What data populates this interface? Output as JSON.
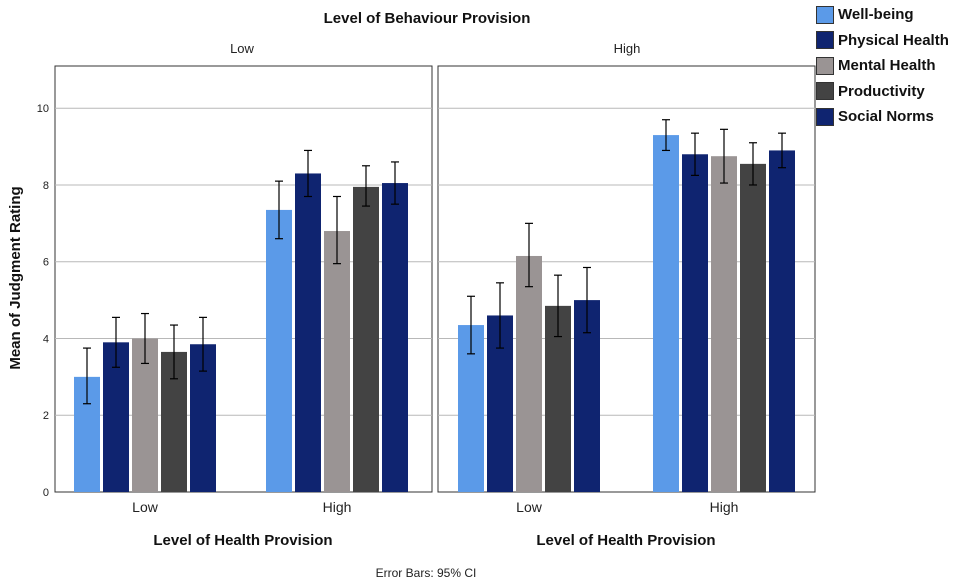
{
  "chart_data": {
    "type": "bar",
    "title": "Level of Behaviour Provision",
    "ylabel": "Mean of Judgment Rating",
    "xlabel": "Level of Health Provision",
    "footnote": "Error Bars: 95% CI",
    "ylim": [
      0,
      11.1
    ],
    "yticks": [
      0,
      2,
      4,
      6,
      8,
      10
    ],
    "grid": true,
    "legend_position": "top-right",
    "categories": [
      "Low",
      "High"
    ],
    "series": [
      {
        "name": "Well-being",
        "color": "#5b9ae8"
      },
      {
        "name": "Physical Health",
        "color": "#0f2470"
      },
      {
        "name": "Mental Health",
        "color": "#9a9494"
      },
      {
        "name": "Productivity",
        "color": "#434343"
      },
      {
        "name": "Social Norms",
        "color": "#0f2470"
      }
    ],
    "panels": [
      {
        "label": "Low",
        "groups": [
          {
            "category": "Low",
            "values": [
              3.0,
              3.9,
              4.0,
              3.65,
              3.85
            ],
            "ci_low": [
              2.3,
              3.25,
              3.35,
              2.95,
              3.15
            ],
            "ci_high": [
              3.75,
              4.55,
              4.65,
              4.35,
              4.55
            ]
          },
          {
            "category": "High",
            "values": [
              7.35,
              8.3,
              6.8,
              7.95,
              8.05
            ],
            "ci_low": [
              6.6,
              7.7,
              5.95,
              7.45,
              7.5
            ],
            "ci_high": [
              8.1,
              8.9,
              7.7,
              8.5,
              8.6
            ]
          }
        ]
      },
      {
        "label": "High",
        "groups": [
          {
            "category": "Low",
            "values": [
              4.35,
              4.6,
              6.15,
              4.85,
              5.0
            ],
            "ci_low": [
              3.6,
              3.75,
              5.35,
              4.05,
              4.15
            ],
            "ci_high": [
              5.1,
              5.45,
              7.0,
              5.65,
              5.85
            ]
          },
          {
            "category": "High",
            "values": [
              9.3,
              8.8,
              8.75,
              8.55,
              8.9
            ],
            "ci_low": [
              8.9,
              8.25,
              8.05,
              8.0,
              8.45
            ],
            "ci_high": [
              9.7,
              9.35,
              9.45,
              9.1,
              9.35
            ]
          }
        ]
      }
    ]
  }
}
